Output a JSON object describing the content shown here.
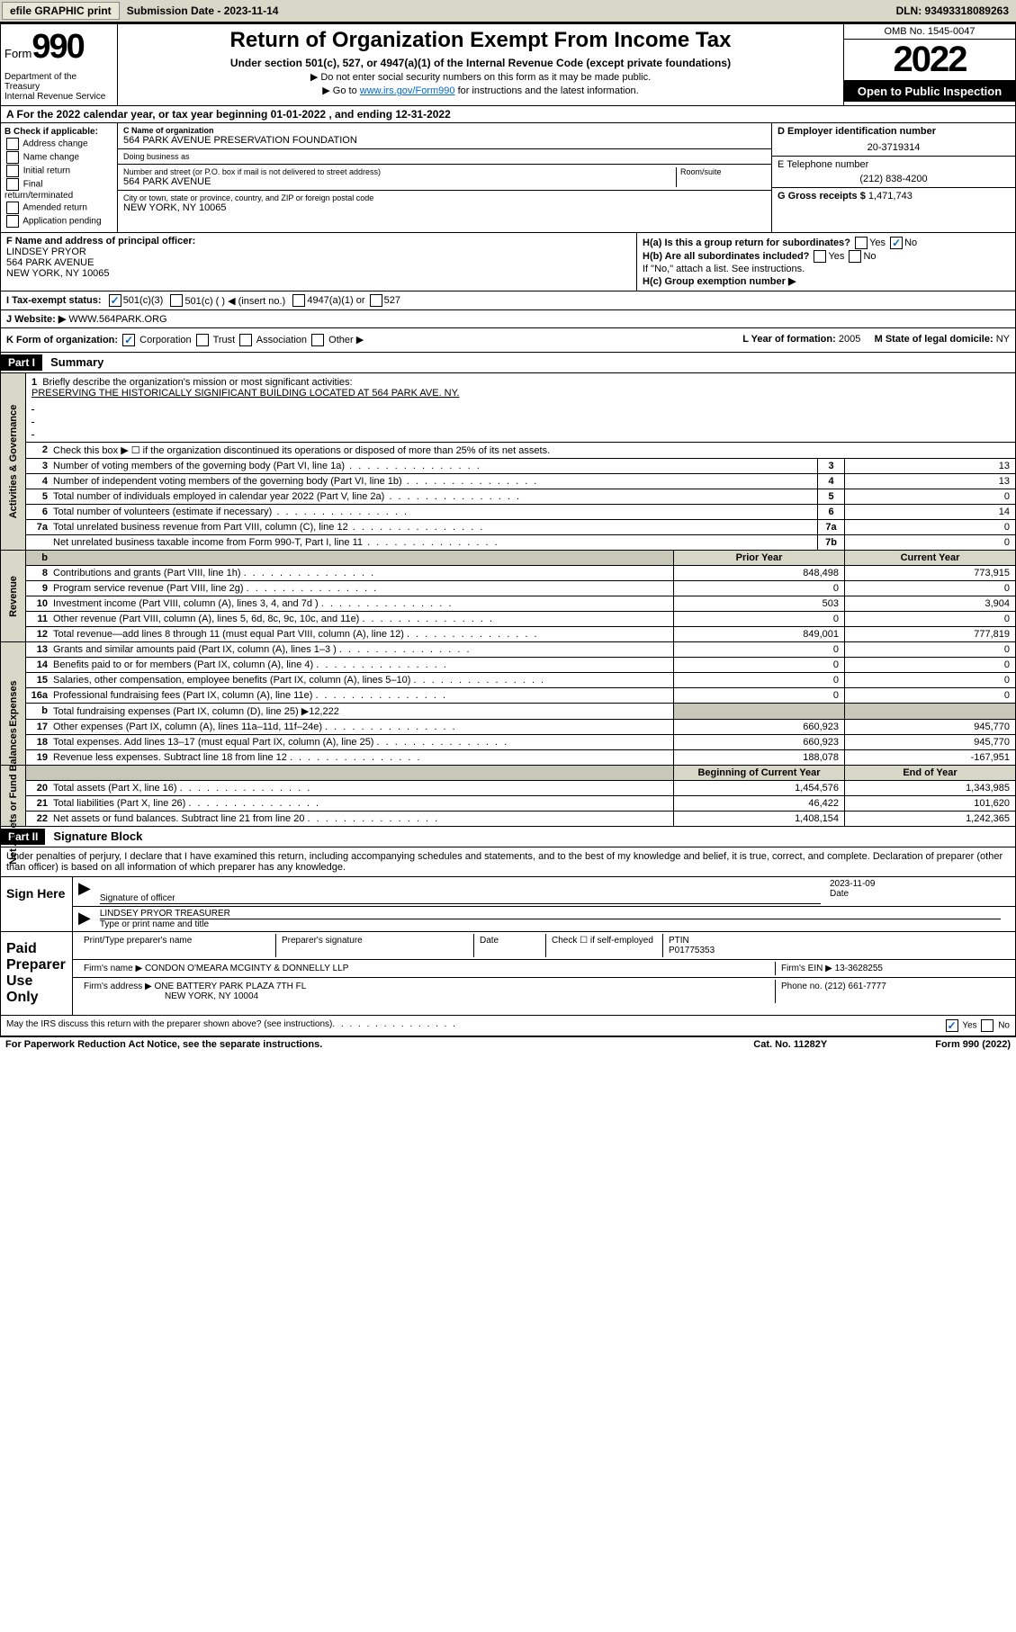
{
  "toolbar": {
    "efile": "efile GRAPHIC print",
    "submission_label": "Submission Date - 2023-11-14",
    "dln": "DLN: 93493318089263"
  },
  "header": {
    "form_label": "Form",
    "form_number": "990",
    "title": "Return of Organization Exempt From Income Tax",
    "subtitle": "Under section 501(c), 527, or 4947(a)(1) of the Internal Revenue Code (except private foundations)",
    "note1": "▶ Do not enter social security numbers on this form as it may be made public.",
    "note2_pre": "▶ Go to ",
    "note2_link": "www.irs.gov/Form990",
    "note2_post": " for instructions and the latest information.",
    "dept": "Department of the Treasury\nInternal Revenue Service",
    "omb": "OMB No. 1545-0047",
    "year": "2022",
    "inspect": "Open to Public Inspection"
  },
  "row_a": "A For the 2022 calendar year, or tax year beginning 01-01-2022   , and ending 12-31-2022",
  "sec_b": {
    "label": "B Check if applicable:",
    "items": [
      "Address change",
      "Name change",
      "Initial return",
      "Final return/terminated",
      "Amended return",
      "Application pending"
    ]
  },
  "sec_c": {
    "name_label": "C Name of organization",
    "name": "564 PARK AVENUE PRESERVATION FOUNDATION",
    "dba_label": "Doing business as",
    "dba": "",
    "street_label": "Number and street (or P.O. box if mail is not delivered to street address)",
    "room_label": "Room/suite",
    "street": "564 PARK AVENUE",
    "city_label": "City or town, state or province, country, and ZIP or foreign postal code",
    "city": "NEW YORK, NY  10065"
  },
  "sec_d": {
    "ein_label": "D Employer identification number",
    "ein": "20-3719314",
    "tel_label": "E Telephone number",
    "tel": "(212) 838-4200",
    "gross_label": "G Gross receipts $",
    "gross": "1,471,743"
  },
  "sec_f": {
    "label": "F  Name and address of principal officer:",
    "name": "LINDSEY PRYOR",
    "addr1": "564 PARK AVENUE",
    "addr2": "NEW YORK, NY  10065"
  },
  "sec_h": {
    "ha": "H(a)  Is this a group return for subordinates?",
    "hb": "H(b)  Are all subordinates included?",
    "hb_note": "If \"No,\" attach a list. See instructions.",
    "hc": "H(c)  Group exemption number ▶",
    "yes": "Yes",
    "no": "No"
  },
  "row_i": {
    "label": "I   Tax-exempt status:",
    "c3": "501(c)(3)",
    "c": "501(c) (  ) ◀ (insert no.)",
    "a1": "4947(a)(1) or",
    "s527": "527"
  },
  "row_j": {
    "label": "J   Website: ▶",
    "val": "WWW.564PARK.ORG"
  },
  "row_k": {
    "label": "K Form of organization:",
    "corp": "Corporation",
    "trust": "Trust",
    "assoc": "Association",
    "other": "Other ▶",
    "l_label": "L Year of formation:",
    "l_val": "2005",
    "m_label": "M State of legal domicile:",
    "m_val": "NY"
  },
  "part1": {
    "header": "Part I",
    "title": "Summary",
    "q1": "Briefly describe the organization's mission or most significant activities:",
    "mission": "PRESERVING THE HISTORICALLY SIGNIFICANT BUILDING LOCATED AT 564 PARK AVE. NY.",
    "q2": "Check this box ▶ ☐  if the organization discontinued its operations or disposed of more than 25% of its net assets.",
    "lines_gov": [
      {
        "n": "3",
        "d": "Number of voting members of the governing body (Part VI, line 1a)",
        "box": "3",
        "v": "13"
      },
      {
        "n": "4",
        "d": "Number of independent voting members of the governing body (Part VI, line 1b)",
        "box": "4",
        "v": "13"
      },
      {
        "n": "5",
        "d": "Total number of individuals employed in calendar year 2022 (Part V, line 2a)",
        "box": "5",
        "v": "0"
      },
      {
        "n": "6",
        "d": "Total number of volunteers (estimate if necessary)",
        "box": "6",
        "v": "14"
      },
      {
        "n": "7a",
        "d": "Total unrelated business revenue from Part VIII, column (C), line 12",
        "box": "7a",
        "v": "0"
      },
      {
        "n": "",
        "d": "Net unrelated business taxable income from Form 990-T, Part I, line 11",
        "box": "7b",
        "v": "0"
      }
    ],
    "hdr_prior": "Prior Year",
    "hdr_curr": "Current Year",
    "lines_rev": [
      {
        "n": "8",
        "d": "Contributions and grants (Part VIII, line 1h)",
        "p": "848,498",
        "c": "773,915"
      },
      {
        "n": "9",
        "d": "Program service revenue (Part VIII, line 2g)",
        "p": "0",
        "c": "0"
      },
      {
        "n": "10",
        "d": "Investment income (Part VIII, column (A), lines 3, 4, and 7d )",
        "p": "503",
        "c": "3,904"
      },
      {
        "n": "11",
        "d": "Other revenue (Part VIII, column (A), lines 5, 6d, 8c, 9c, 10c, and 11e)",
        "p": "0",
        "c": "0"
      },
      {
        "n": "12",
        "d": "Total revenue—add lines 8 through 11 (must equal Part VIII, column (A), line 12)",
        "p": "849,001",
        "c": "777,819"
      }
    ],
    "lines_exp": [
      {
        "n": "13",
        "d": "Grants and similar amounts paid (Part IX, column (A), lines 1–3 )",
        "p": "0",
        "c": "0"
      },
      {
        "n": "14",
        "d": "Benefits paid to or for members (Part IX, column (A), line 4)",
        "p": "0",
        "c": "0"
      },
      {
        "n": "15",
        "d": "Salaries, other compensation, employee benefits (Part IX, column (A), lines 5–10)",
        "p": "0",
        "c": "0"
      },
      {
        "n": "16a",
        "d": "Professional fundraising fees (Part IX, column (A), line 11e)",
        "p": "0",
        "c": "0"
      },
      {
        "n": "b",
        "d": "Total fundraising expenses (Part IX, column (D), line 25) ▶12,222",
        "p": "",
        "c": "",
        "gray": true
      },
      {
        "n": "17",
        "d": "Other expenses (Part IX, column (A), lines 11a–11d, 11f–24e)",
        "p": "660,923",
        "c": "945,770"
      },
      {
        "n": "18",
        "d": "Total expenses. Add lines 13–17 (must equal Part IX, column (A), line 25)",
        "p": "660,923",
        "c": "945,770"
      },
      {
        "n": "19",
        "d": "Revenue less expenses. Subtract line 18 from line 12",
        "p": "188,078",
        "c": "-167,951"
      }
    ],
    "hdr_beg": "Beginning of Current Year",
    "hdr_end": "End of Year",
    "lines_net": [
      {
        "n": "20",
        "d": "Total assets (Part X, line 16)",
        "p": "1,454,576",
        "c": "1,343,985"
      },
      {
        "n": "21",
        "d": "Total liabilities (Part X, line 26)",
        "p": "46,422",
        "c": "101,620"
      },
      {
        "n": "22",
        "d": "Net assets or fund balances. Subtract line 21 from line 20",
        "p": "1,408,154",
        "c": "1,242,365"
      }
    ],
    "side_gov": "Activities & Governance",
    "side_rev": "Revenue",
    "side_exp": "Expenses",
    "side_net": "Net Assets or Fund Balances"
  },
  "part2": {
    "header": "Part II",
    "title": "Signature Block",
    "note": "Under penalties of perjury, I declare that I have examined this return, including accompanying schedules and statements, and to the best of my knowledge and belief, it is true, correct, and complete. Declaration of preparer (other than officer) is based on all information of which preparer has any knowledge.",
    "sign_here": "Sign Here",
    "sig_officer": "Signature of officer",
    "sig_date_label": "Date",
    "sig_date": "2023-11-09",
    "officer_name": "LINDSEY PRYOR  TREASURER",
    "officer_sub": "Type or print name and title",
    "paid": "Paid Preparer Use Only",
    "prep_name_label": "Print/Type preparer's name",
    "prep_sig_label": "Preparer's signature",
    "prep_date_label": "Date",
    "self_emp": "Check ☐ if self-employed",
    "ptin_label": "PTIN",
    "ptin": "P01775353",
    "firm_name_label": "Firm's name    ▶",
    "firm_name": "CONDON O'MEARA MCGINTY & DONNELLY LLP",
    "firm_ein_label": "Firm's EIN ▶",
    "firm_ein": "13-3628255",
    "firm_addr_label": "Firm's address ▶",
    "firm_addr": "ONE BATTERY PARK PLAZA 7TH FL",
    "firm_city": "NEW YORK, NY  10004",
    "phone_label": "Phone no.",
    "phone": "(212) 661-7777",
    "discuss": "May the IRS discuss this return with the preparer shown above? (see instructions)"
  },
  "footer": {
    "left": "For Paperwork Reduction Act Notice, see the separate instructions.",
    "mid": "Cat. No. 11282Y",
    "right": "Form 990 (2022)"
  }
}
